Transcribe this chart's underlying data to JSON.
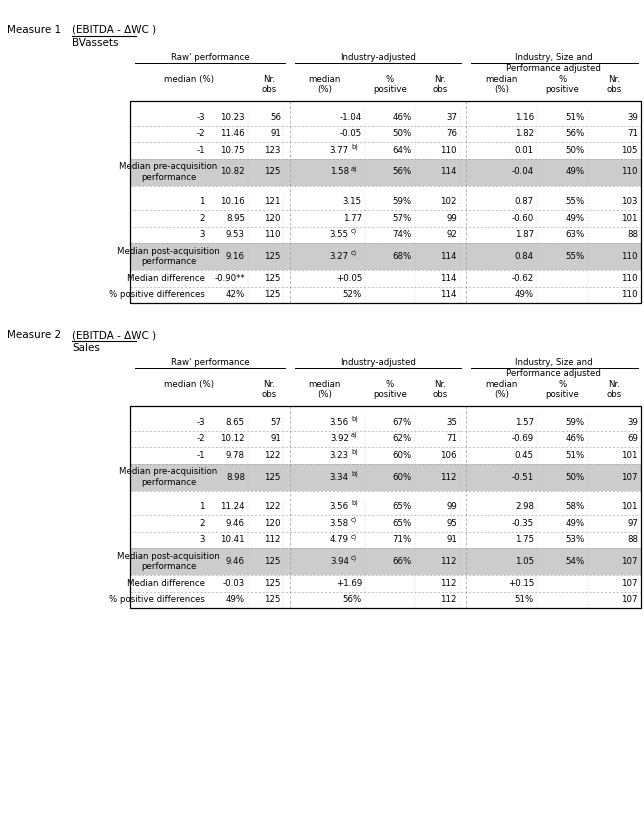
{
  "measure1_label": "Measure 1",
  "measure1_title": "(EBITDA - ΔWC )",
  "measure1_subtitle": "BVassets",
  "measure2_label": "Measure 2",
  "measure2_title": "(EBITDA - ΔWC )",
  "measure2_subtitle": "Sales",
  "gray": "#cccccc",
  "table1_rows": [
    {
      "label": "-3",
      "type": "data",
      "raw_med": "10.23",
      "raw_nr": "56",
      "ia_med": "-1.04",
      "ia_sup": "",
      "ia_pct": "46%",
      "ia_nr": "37",
      "isp_med": "1.16",
      "isp_pct": "51%",
      "isp_nr": "39"
    },
    {
      "label": "-2",
      "type": "data",
      "raw_med": "11.46",
      "raw_nr": "91",
      "ia_med": "-0.05",
      "ia_sup": "",
      "ia_pct": "50%",
      "ia_nr": "76",
      "isp_med": "1.82",
      "isp_pct": "56%",
      "isp_nr": "71"
    },
    {
      "label": "-1",
      "type": "data",
      "raw_med": "10.75",
      "raw_nr": "123",
      "ia_med": "3.77",
      "ia_sup": "b)",
      "ia_pct": "64%",
      "ia_nr": "110",
      "isp_med": "0.01",
      "isp_pct": "50%",
      "isp_nr": "105"
    },
    {
      "label": "Median pre-acquisition\nperformance",
      "type": "highlight",
      "raw_med": "10.82",
      "raw_nr": "125",
      "ia_med": "1.58",
      "ia_sup": "a)",
      "ia_pct": "56%",
      "ia_nr": "114",
      "isp_med": "-0.04",
      "isp_pct": "49%",
      "isp_nr": "110"
    },
    {
      "label": "1",
      "type": "data",
      "raw_med": "10.16",
      "raw_nr": "121",
      "ia_med": "3.15",
      "ia_sup": "",
      "ia_pct": "59%",
      "ia_nr": "102",
      "isp_med": "0.87",
      "isp_pct": "55%",
      "isp_nr": "103"
    },
    {
      "label": "2",
      "type": "data",
      "raw_med": "8.95",
      "raw_nr": "120",
      "ia_med": "1.77",
      "ia_sup": "",
      "ia_pct": "57%",
      "ia_nr": "99",
      "isp_med": "-0.60",
      "isp_pct": "49%",
      "isp_nr": "101"
    },
    {
      "label": "3",
      "type": "data",
      "raw_med": "9.53",
      "raw_nr": "110",
      "ia_med": "3.55",
      "ia_sup": "c)",
      "ia_pct": "74%",
      "ia_nr": "92",
      "isp_med": "1.87",
      "isp_pct": "63%",
      "isp_nr": "88"
    },
    {
      "label": "Median post-acquisition\nperformance",
      "type": "highlight",
      "raw_med": "9.16",
      "raw_nr": "125",
      "ia_med": "3.27",
      "ia_sup": "c)",
      "ia_pct": "68%",
      "ia_nr": "114",
      "isp_med": "0.84",
      "isp_pct": "55%",
      "isp_nr": "110"
    },
    {
      "label": "Median difference",
      "type": "summary",
      "raw_med": "-0.90**",
      "raw_nr": "125",
      "ia_med": "+0.05",
      "ia_sup": "",
      "ia_pct": "",
      "ia_nr": "114",
      "isp_med": "-0.62",
      "isp_pct": "",
      "isp_nr": "110"
    },
    {
      "label": "% positive differences",
      "type": "summary",
      "raw_med": "42%",
      "raw_nr": "125",
      "ia_med": "52%",
      "ia_sup": "",
      "ia_pct": "",
      "ia_nr": "114",
      "isp_med": "49%",
      "isp_pct": "",
      "isp_nr": "110"
    }
  ],
  "table2_rows": [
    {
      "label": "-3",
      "type": "data",
      "raw_med": "8.65",
      "raw_nr": "57",
      "ia_med": "3.56",
      "ia_sup": "b)",
      "ia_pct": "67%",
      "ia_nr": "35",
      "isp_med": "1.57",
      "isp_pct": "59%",
      "isp_nr": "39"
    },
    {
      "label": "-2",
      "type": "data",
      "raw_med": "10.12",
      "raw_nr": "91",
      "ia_med": "3.92",
      "ia_sup": "a)",
      "ia_pct": "62%",
      "ia_nr": "71",
      "isp_med": "-0.69",
      "isp_pct": "46%",
      "isp_nr": "69"
    },
    {
      "label": "-1",
      "type": "data",
      "raw_med": "9.78",
      "raw_nr": "122",
      "ia_med": "3.23",
      "ia_sup": "b)",
      "ia_pct": "60%",
      "ia_nr": "106",
      "isp_med": "0.45",
      "isp_pct": "51%",
      "isp_nr": "101"
    },
    {
      "label": "Median pre-acquisition\nperformance",
      "type": "highlight",
      "raw_med": "8.98",
      "raw_nr": "125",
      "ia_med": "3.34",
      "ia_sup": "b)",
      "ia_pct": "60%",
      "ia_nr": "112",
      "isp_med": "-0.51",
      "isp_pct": "50%",
      "isp_nr": "107"
    },
    {
      "label": "1",
      "type": "data",
      "raw_med": "11.24",
      "raw_nr": "122",
      "ia_med": "3.56",
      "ia_sup": "b)",
      "ia_pct": "65%",
      "ia_nr": "99",
      "isp_med": "2.98",
      "isp_pct": "58%",
      "isp_nr": "101"
    },
    {
      "label": "2",
      "type": "data",
      "raw_med": "9.46",
      "raw_nr": "120",
      "ia_med": "3.58",
      "ia_sup": "c)",
      "ia_pct": "65%",
      "ia_nr": "95",
      "isp_med": "-0.35",
      "isp_pct": "49%",
      "isp_nr": "97"
    },
    {
      "label": "3",
      "type": "data",
      "raw_med": "10.41",
      "raw_nr": "112",
      "ia_med": "4.79",
      "ia_sup": "c)",
      "ia_pct": "71%",
      "ia_nr": "91",
      "isp_med": "1.75",
      "isp_pct": "53%",
      "isp_nr": "88"
    },
    {
      "label": "Median post-acquisition\nperformance",
      "type": "highlight",
      "raw_med": "9.46",
      "raw_nr": "125",
      "ia_med": "3.94",
      "ia_sup": "c)",
      "ia_pct": "66%",
      "ia_nr": "112",
      "isp_med": "1.05",
      "isp_pct": "54%",
      "isp_nr": "107"
    },
    {
      "label": "Median difference",
      "type": "summary",
      "raw_med": "-0.03",
      "raw_nr": "125",
      "ia_med": "+1.69",
      "ia_sup": "",
      "ia_pct": "",
      "ia_nr": "112",
      "isp_med": "+0.15",
      "isp_pct": "",
      "isp_nr": "107"
    },
    {
      "label": "% positive differences",
      "type": "summary",
      "raw_med": "49%",
      "raw_nr": "125",
      "ia_med": "56%",
      "ia_sup": "",
      "ia_pct": "",
      "ia_nr": "112",
      "isp_med": "51%",
      "isp_pct": "",
      "isp_nr": "107"
    }
  ]
}
